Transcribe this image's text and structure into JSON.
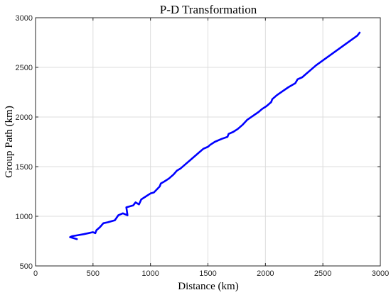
{
  "chart_data": {
    "type": "line",
    "title": "P-D Transformation",
    "xlabel": "Distance (km)",
    "ylabel": "Group Path (km)",
    "xlim": [
      0,
      3000
    ],
    "ylim": [
      500,
      3000
    ],
    "xticks": [
      0,
      500,
      1000,
      1500,
      2000,
      2500,
      3000
    ],
    "yticks": [
      500,
      1000,
      1500,
      2000,
      2500,
      3000
    ],
    "xtick_labels": [
      "0",
      "500",
      "1000",
      "1500",
      "2000",
      "2500",
      "3000"
    ],
    "ytick_labels": [
      "500",
      "1000",
      "1500",
      "2000",
      "2500",
      "3000"
    ],
    "grid": true,
    "box": true,
    "series": [
      {
        "color": "#0000ff",
        "x": [
          360,
          330,
          300,
          320,
          370,
          420,
          460,
          500,
          520,
          530,
          560,
          590,
          630,
          690,
          720,
          760,
          800,
          790,
          820,
          850,
          870,
          900,
          920,
          960,
          1000,
          1030,
          1080,
          1090,
          1120,
          1160,
          1200,
          1230,
          1260,
          1300,
          1340,
          1380,
          1420,
          1460,
          1500,
          1520,
          1560,
          1620,
          1670,
          1680,
          1720,
          1760,
          1800,
          1840,
          1890,
          1940,
          1970,
          2010,
          2050,
          2060,
          2100,
          2150,
          2200,
          2260,
          2280,
          2320,
          2360,
          2400,
          2440,
          2500,
          2560,
          2620,
          2680,
          2740,
          2800,
          2820
        ],
        "y": [
          770,
          780,
          790,
          800,
          810,
          820,
          830,
          840,
          830,
          860,
          890,
          930,
          940,
          960,
          1010,
          1030,
          1010,
          1090,
          1100,
          1110,
          1140,
          1120,
          1170,
          1200,
          1230,
          1240,
          1300,
          1330,
          1350,
          1380,
          1420,
          1460,
          1480,
          1520,
          1560,
          1600,
          1640,
          1680,
          1700,
          1720,
          1750,
          1780,
          1800,
          1830,
          1850,
          1880,
          1920,
          1970,
          2010,
          2050,
          2080,
          2110,
          2150,
          2180,
          2220,
          2260,
          2300,
          2340,
          2380,
          2400,
          2440,
          2480,
          2520,
          2570,
          2620,
          2670,
          2720,
          2770,
          2820,
          2850
        ]
      }
    ]
  }
}
